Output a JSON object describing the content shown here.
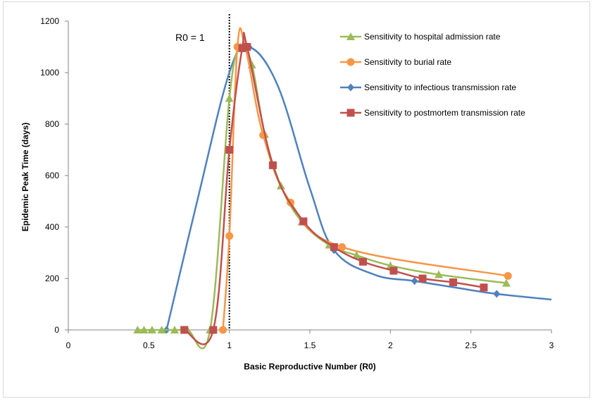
{
  "chart_data": {
    "type": "line",
    "xlabel": "Basic Reproductive Number (R0)",
    "ylabel": "Epidemic Peak Time (days)",
    "xlim": [
      0,
      3
    ],
    "ylim": [
      0,
      1200
    ],
    "xticks": [
      0,
      0.5,
      1,
      1.5,
      2,
      2.5,
      3
    ],
    "xtick_labels": [
      "0",
      "0.5",
      "1",
      "1.5",
      "2",
      "2.5",
      "3"
    ],
    "yticks": [
      0,
      200,
      400,
      600,
      800,
      1000,
      1200
    ],
    "ytick_labels": [
      "0",
      "200",
      "400",
      "600",
      "800",
      "1000",
      "1200"
    ],
    "grid": false,
    "legend_position": "top-right",
    "reference_line": {
      "x": 1,
      "label": "R0 = 1",
      "style": "dotted"
    },
    "series": [
      {
        "name": "Sensitivity to hospital admission rate",
        "color": "#9bbb59",
        "marker": "triangle",
        "x": [
          0.43,
          0.47,
          0.52,
          0.58,
          0.66,
          0.74,
          0.88,
          1.0,
          1.07,
          1.14,
          1.22,
          1.32,
          1.45,
          1.62,
          1.79,
          2.0,
          2.3,
          2.72
        ],
        "y": [
          0,
          0,
          0,
          0,
          0,
          0,
          0,
          900,
          1100,
          1030,
          760,
          560,
          420,
          330,
          290,
          250,
          215,
          182
        ]
      },
      {
        "name": "Sensitivity to burial rate",
        "color": "#f79646",
        "marker": "circle",
        "x": [
          0.96,
          1.0,
          1.05,
          1.1,
          1.21,
          1.38,
          1.7,
          2.73
        ],
        "y": [
          0,
          365,
          1100,
          1095,
          757,
          495,
          322,
          210
        ]
      },
      {
        "name": "Sensitivity to infectious transmission rate",
        "color": "#4f81bd",
        "marker": "diamond",
        "x": [
          0.61,
          0.8,
          1.0,
          1.12,
          1.3,
          1.5,
          1.65,
          1.9,
          2.15,
          2.4,
          2.66,
          3.0
        ],
        "y": [
          0,
          500,
          1000,
          1100,
          950,
          550,
          310,
          215,
          190,
          165,
          140,
          118
        ]
      },
      {
        "name": "Sensitivity to postmortem transmission rate",
        "color": "#c0504d",
        "marker": "square",
        "x": [
          0.72,
          0.9,
          1.0,
          1.08,
          1.11,
          1.27,
          1.46,
          1.65,
          1.83,
          2.02,
          2.2,
          2.39,
          2.58
        ],
        "y": [
          0,
          0,
          700,
          1095,
          1100,
          640,
          422,
          322,
          265,
          230,
          200,
          185,
          165
        ]
      }
    ]
  }
}
